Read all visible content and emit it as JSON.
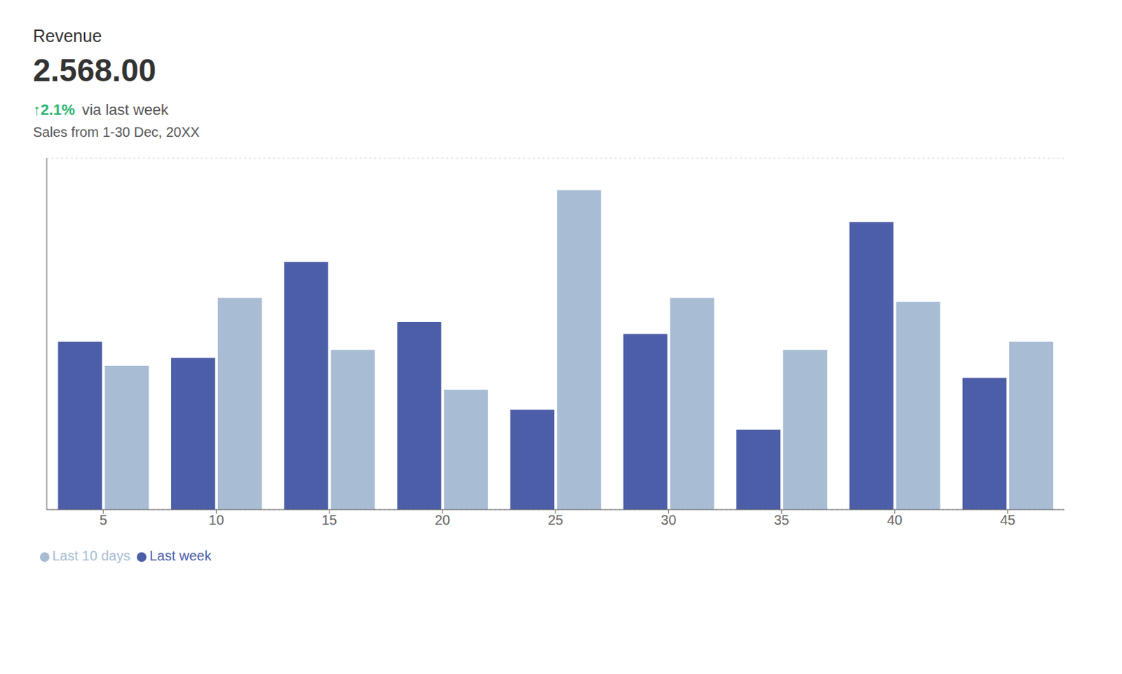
{
  "chart_data": {
    "type": "bar",
    "title": "Revenue",
    "subtitle": "2.568.00",
    "annotations": [
      {
        "text": "↑2.1%",
        "color": "#2db56e"
      },
      {
        "text": "via last week"
      },
      {
        "text": "Sales from 1-30 Dec, 20XX"
      }
    ],
    "categories": [
      "5",
      "10",
      "15",
      "20",
      "25",
      "30",
      "35",
      "40",
      "45"
    ],
    "series": [
      {
        "name": "Last week",
        "color": "#4d5ea8",
        "values": [
          42,
          38,
          62,
          47,
          25,
          44,
          20,
          72,
          33
        ]
      },
      {
        "name": "Last 10 days",
        "color": "#a8bdd4",
        "values": [
          36,
          53,
          40,
          30,
          80,
          53,
          40,
          52,
          42
        ]
      }
    ],
    "ylim": [
      0,
      88
    ],
    "yticks": [
      20,
      40,
      60,
      80
    ],
    "grid": true,
    "legend": "bottom",
    "tick_labels": "x"
  }
}
